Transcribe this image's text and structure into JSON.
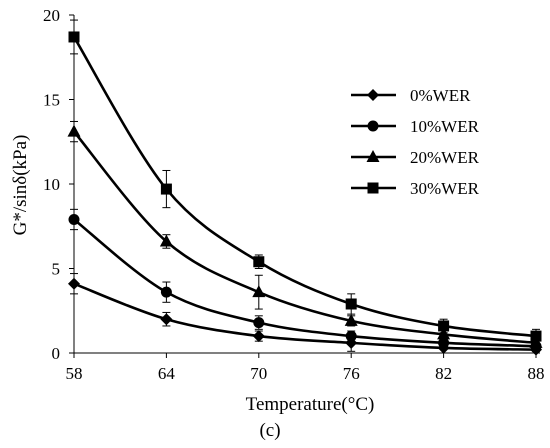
{
  "chart_data": {
    "type": "line",
    "xlabel": "Temperature(°C)",
    "ylabel": "G*/sinδ(kPa)",
    "panel_label": "(c)",
    "x": [
      58,
      64,
      70,
      76,
      82,
      88
    ],
    "x_ticks": [
      "58",
      "64",
      "70",
      "76",
      "82",
      "88"
    ],
    "xlim": [
      58,
      88
    ],
    "ylim": [
      0,
      20
    ],
    "y_ticks": [
      "0",
      "5",
      "10",
      "15",
      "20"
    ],
    "grid": false,
    "legend_position": "top-right",
    "series": [
      {
        "name": "0%WER",
        "marker": "diamond",
        "values": [
          4.1,
          2.0,
          1.0,
          0.6,
          0.3,
          0.2
        ],
        "errors": [
          0.6,
          0.4,
          0.3,
          0.5,
          0.3,
          0.3
        ]
      },
      {
        "name": "10%WER",
        "marker": "circle",
        "values": [
          7.9,
          3.6,
          1.8,
          1.0,
          0.6,
          0.4
        ],
        "errors": [
          0.6,
          0.6,
          0.4,
          0.3,
          0.3,
          0.3
        ]
      },
      {
        "name": "20%WER",
        "marker": "triangle",
        "values": [
          13.1,
          6.6,
          3.6,
          1.9,
          1.1,
          0.6
        ],
        "errors": [
          0.6,
          0.4,
          1.0,
          0.3,
          0.3,
          0.3
        ]
      },
      {
        "name": "30%WER",
        "marker": "square",
        "values": [
          18.7,
          9.7,
          5.4,
          2.9,
          1.6,
          1.0
        ],
        "errors": [
          1.0,
          1.1,
          0.4,
          0.6,
          0.4,
          0.4
        ]
      }
    ]
  }
}
